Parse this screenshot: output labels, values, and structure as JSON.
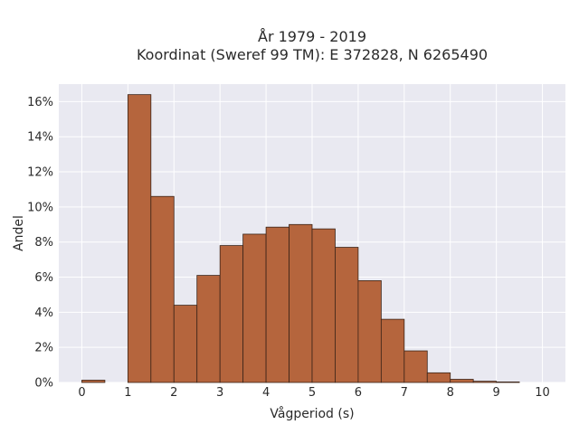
{
  "chart_data": {
    "type": "bar",
    "title_line1": "År 1979 - 2019",
    "title_line2": "Koordinat (Sweref 99 TM): E 372828, N 6265490",
    "xlabel": "Vågperiod (s)",
    "ylabel": "Andel",
    "bin_width": 0.5,
    "bins": [
      {
        "x": 0.0,
        "y": 0.13
      },
      {
        "x": 0.5,
        "y": 0.0
      },
      {
        "x": 1.0,
        "y": 16.4
      },
      {
        "x": 1.5,
        "y": 10.6
      },
      {
        "x": 2.0,
        "y": 4.4
      },
      {
        "x": 2.5,
        "y": 6.1
      },
      {
        "x": 3.0,
        "y": 7.8
      },
      {
        "x": 3.5,
        "y": 8.45
      },
      {
        "x": 4.0,
        "y": 8.85
      },
      {
        "x": 4.5,
        "y": 9.0
      },
      {
        "x": 5.0,
        "y": 8.75
      },
      {
        "x": 5.5,
        "y": 7.7
      },
      {
        "x": 6.0,
        "y": 5.8
      },
      {
        "x": 6.5,
        "y": 3.6
      },
      {
        "x": 7.0,
        "y": 1.8
      },
      {
        "x": 7.5,
        "y": 0.55
      },
      {
        "x": 8.0,
        "y": 0.18
      },
      {
        "x": 8.5,
        "y": 0.07
      },
      {
        "x": 9.0,
        "y": 0.03
      }
    ],
    "xlim": [
      -0.5,
      10.5
    ],
    "ylim": [
      0,
      17
    ],
    "x_ticks": [
      "0",
      "1",
      "2",
      "3",
      "4",
      "5",
      "6",
      "7",
      "8",
      "9",
      "10"
    ],
    "y_ticks": [
      "0%",
      "2%",
      "4%",
      "6%",
      "8%",
      "10%",
      "12%",
      "14%",
      "16%"
    ],
    "grid": true,
    "colors": {
      "bar_fill": "#b5653d",
      "bar_edge": "#3b2418",
      "plot_bg": "#e9e9f1",
      "grid": "#ffffff"
    }
  }
}
